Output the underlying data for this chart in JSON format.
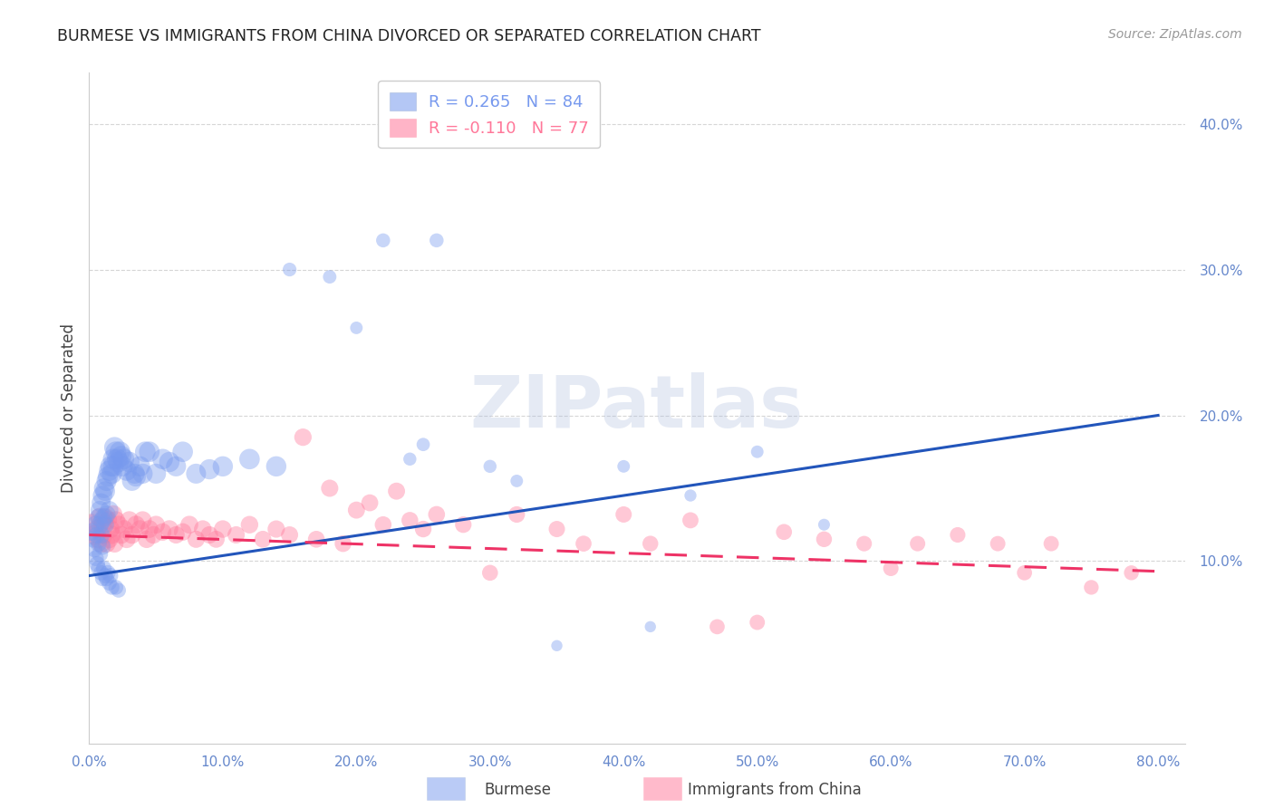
{
  "title": "BURMESE VS IMMIGRANTS FROM CHINA DIVORCED OR SEPARATED CORRELATION CHART",
  "source": "Source: ZipAtlas.com",
  "ylabel": "Divorced or Separated",
  "xlim": [
    0.0,
    0.82
  ],
  "ylim": [
    -0.025,
    0.435
  ],
  "yticks": [
    0.1,
    0.2,
    0.3,
    0.4
  ],
  "xticks": [
    0.0,
    0.1,
    0.2,
    0.3,
    0.4,
    0.5,
    0.6,
    0.7,
    0.8
  ],
  "burmese_color": "#7799ee",
  "china_color": "#ff7799",
  "trendline_burmese_color": "#2255bb",
  "trendline_china_color": "#ee3366",
  "watermark_text": "ZIPatlas",
  "burmese_scatter_x": [
    0.002,
    0.003,
    0.004,
    0.005,
    0.005,
    0.006,
    0.006,
    0.007,
    0.007,
    0.007,
    0.008,
    0.008,
    0.008,
    0.009,
    0.009,
    0.009,
    0.01,
    0.01,
    0.01,
    0.01,
    0.011,
    0.011,
    0.011,
    0.012,
    0.012,
    0.012,
    0.013,
    0.013,
    0.013,
    0.014,
    0.014,
    0.015,
    0.015,
    0.015,
    0.016,
    0.016,
    0.017,
    0.017,
    0.018,
    0.018,
    0.019,
    0.02,
    0.02,
    0.021,
    0.022,
    0.022,
    0.023,
    0.024,
    0.025,
    0.026,
    0.028,
    0.03,
    0.032,
    0.034,
    0.035,
    0.038,
    0.04,
    0.042,
    0.045,
    0.05,
    0.055,
    0.06,
    0.065,
    0.07,
    0.08,
    0.09,
    0.1,
    0.12,
    0.14,
    0.15,
    0.18,
    0.2,
    0.22,
    0.24,
    0.25,
    0.26,
    0.3,
    0.32,
    0.35,
    0.4,
    0.42,
    0.45,
    0.5,
    0.55
  ],
  "burmese_scatter_y": [
    0.12,
    0.115,
    0.108,
    0.125,
    0.102,
    0.118,
    0.098,
    0.13,
    0.112,
    0.095,
    0.135,
    0.125,
    0.105,
    0.14,
    0.118,
    0.092,
    0.145,
    0.128,
    0.11,
    0.088,
    0.15,
    0.13,
    0.095,
    0.148,
    0.125,
    0.09,
    0.155,
    0.132,
    0.088,
    0.158,
    0.092,
    0.162,
    0.135,
    0.085,
    0.165,
    0.09,
    0.16,
    0.082,
    0.17,
    0.165,
    0.178,
    0.175,
    0.082,
    0.17,
    0.168,
    0.08,
    0.175,
    0.172,
    0.165,
    0.17,
    0.162,
    0.168,
    0.155,
    0.16,
    0.158,
    0.165,
    0.16,
    0.175,
    0.175,
    0.16,
    0.17,
    0.168,
    0.165,
    0.175,
    0.16,
    0.163,
    0.165,
    0.17,
    0.165,
    0.3,
    0.295,
    0.26,
    0.32,
    0.17,
    0.18,
    0.32,
    0.165,
    0.155,
    0.042,
    0.165,
    0.055,
    0.145,
    0.175,
    0.125
  ],
  "burmese_scatter_sizes": [
    200,
    180,
    160,
    210,
    160,
    180,
    160,
    200,
    170,
    150,
    220,
    200,
    170,
    230,
    190,
    150,
    240,
    200,
    175,
    145,
    250,
    205,
    155,
    245,
    195,
    148,
    255,
    208,
    148,
    258,
    150,
    265,
    212,
    145,
    268,
    148,
    260,
    142,
    270,
    265,
    275,
    272,
    140,
    268,
    265,
    138,
    270,
    268,
    262,
    268,
    258,
    265,
    250,
    256,
    252,
    260,
    255,
    268,
    268,
    255,
    265,
    260,
    255,
    265,
    252,
    258,
    260,
    265,
    260,
    120,
    115,
    100,
    125,
    108,
    112,
    125,
    108,
    100,
    80,
    100,
    80,
    92,
    100,
    88
  ],
  "china_scatter_x": [
    0.002,
    0.004,
    0.006,
    0.007,
    0.008,
    0.009,
    0.01,
    0.011,
    0.012,
    0.013,
    0.014,
    0.015,
    0.016,
    0.017,
    0.018,
    0.019,
    0.02,
    0.022,
    0.024,
    0.026,
    0.028,
    0.03,
    0.032,
    0.035,
    0.038,
    0.04,
    0.043,
    0.045,
    0.048,
    0.05,
    0.055,
    0.06,
    0.065,
    0.07,
    0.075,
    0.08,
    0.085,
    0.09,
    0.095,
    0.1,
    0.11,
    0.12,
    0.13,
    0.14,
    0.15,
    0.16,
    0.17,
    0.18,
    0.19,
    0.2,
    0.21,
    0.22,
    0.23,
    0.24,
    0.25,
    0.26,
    0.28,
    0.3,
    0.32,
    0.35,
    0.37,
    0.4,
    0.42,
    0.45,
    0.47,
    0.5,
    0.52,
    0.55,
    0.58,
    0.6,
    0.62,
    0.65,
    0.68,
    0.7,
    0.72,
    0.75,
    0.78
  ],
  "china_scatter_y": [
    0.125,
    0.118,
    0.122,
    0.115,
    0.13,
    0.112,
    0.125,
    0.118,
    0.13,
    0.112,
    0.128,
    0.115,
    0.122,
    0.118,
    0.132,
    0.112,
    0.128,
    0.125,
    0.118,
    0.122,
    0.115,
    0.128,
    0.118,
    0.125,
    0.122,
    0.128,
    0.115,
    0.122,
    0.118,
    0.125,
    0.12,
    0.122,
    0.118,
    0.12,
    0.125,
    0.115,
    0.122,
    0.118,
    0.115,
    0.122,
    0.118,
    0.125,
    0.115,
    0.122,
    0.118,
    0.185,
    0.115,
    0.15,
    0.112,
    0.135,
    0.14,
    0.125,
    0.148,
    0.128,
    0.122,
    0.132,
    0.125,
    0.092,
    0.132,
    0.122,
    0.112,
    0.132,
    0.112,
    0.128,
    0.055,
    0.058,
    0.12,
    0.115,
    0.112,
    0.095,
    0.112,
    0.118,
    0.112,
    0.092,
    0.112,
    0.082,
    0.092
  ],
  "china_scatter_sizes": [
    300,
    250,
    220,
    210,
    230,
    210,
    220,
    205,
    215,
    205,
    215,
    205,
    210,
    208,
    215,
    202,
    210,
    205,
    200,
    205,
    198,
    210,
    200,
    205,
    200,
    208,
    196,
    200,
    196,
    200,
    195,
    198,
    190,
    195,
    200,
    188,
    195,
    190,
    185,
    195,
    188,
    195,
    182,
    190,
    185,
    192,
    180,
    188,
    178,
    185,
    182,
    178,
    185,
    178,
    175,
    180,
    172,
    160,
    172,
    168,
    162,
    168,
    158,
    165,
    145,
    148,
    162,
    158,
    152,
    150,
    150,
    152,
    148,
    145,
    148,
    138,
    140
  ],
  "burmese_trendline_x0": 0.0,
  "burmese_trendline_x1": 0.8,
  "burmese_trendline_y0": 0.09,
  "burmese_trendline_y1": 0.2,
  "china_trendline_x0": 0.0,
  "china_trendline_x1": 0.8,
  "china_trendline_y0": 0.118,
  "china_trendline_y1": 0.093,
  "legend_burmese_label": "R = 0.265   N = 84",
  "legend_china_label": "R = -0.110   N = 77",
  "bottom_legend_burmese": "Burmese",
  "bottom_legend_china": "Immigrants from China",
  "tick_color": "#6688cc",
  "grid_color": "#cccccc",
  "title_color": "#222222",
  "source_color": "#999999"
}
